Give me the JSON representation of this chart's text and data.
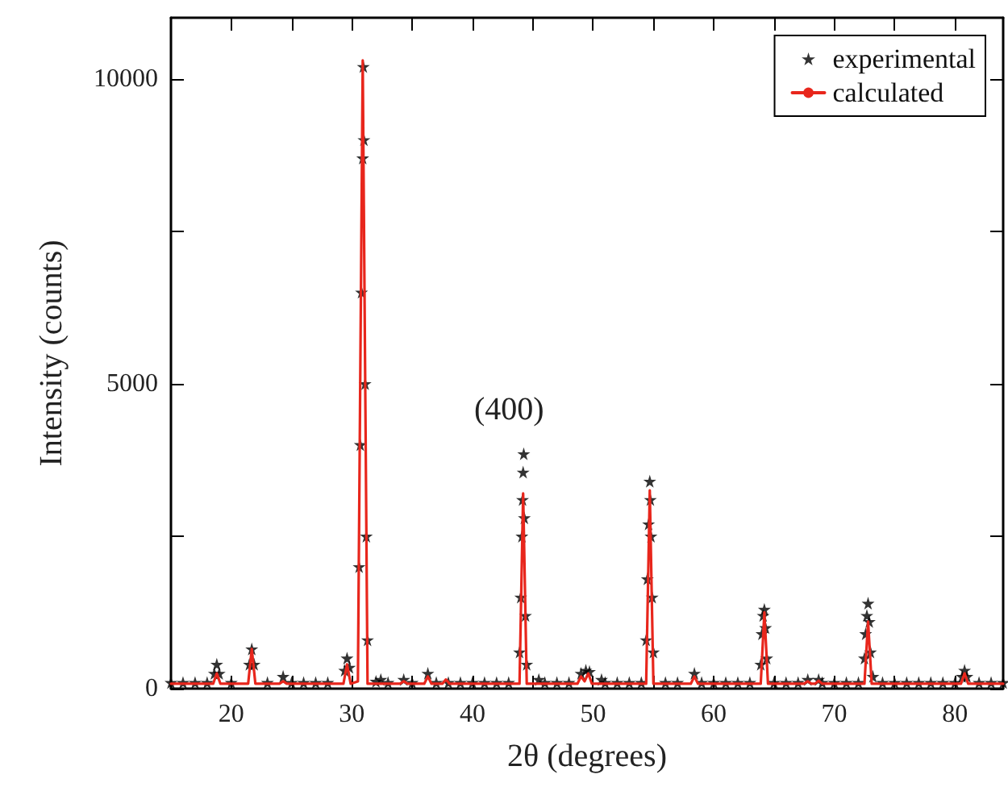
{
  "chart_data": {
    "type": "scatter",
    "xlabel": "2θ (degrees)",
    "ylabel": "Intensity (counts)",
    "xlim": [
      15,
      84
    ],
    "ylim": [
      0,
      11000
    ],
    "xticks": [
      20,
      {
        "value": 25,
        "label": null
      },
      30,
      {
        "value": 35,
        "label": null
      },
      40,
      {
        "value": 45,
        "label": null
      },
      50,
      {
        "value": 55,
        "label": null
      },
      60,
      {
        "value": 65,
        "label": null
      },
      70,
      {
        "value": 75,
        "label": null
      },
      80
    ],
    "yticks": [
      0,
      {
        "value": 2500,
        "label": null
      },
      5000,
      {
        "value": 7500,
        "label": null
      },
      10000
    ],
    "grid": false,
    "legend": "top right",
    "marker": "star",
    "annotations": [
      "(400)"
    ],
    "series": [
      {
        "name": "experimental",
        "color": "#000000",
        "x": [
          15,
          16,
          17,
          18,
          18.6,
          18.8,
          19,
          20,
          21.5,
          21.7,
          21.9,
          23,
          24.3,
          25,
          26,
          27,
          28,
          29.4,
          29.6,
          29.8,
          30.6,
          30.7,
          30.8,
          30.9,
          30.95,
          31,
          31.1,
          31.2,
          31.3,
          32,
          32.4,
          33,
          34.3,
          35,
          36.3,
          37,
          38,
          39,
          40,
          41,
          42,
          43,
          43.9,
          44,
          44.1,
          44.15,
          44.2,
          44.25,
          44.3,
          44.4,
          44.5,
          45.5,
          46,
          47,
          48,
          49,
          49.4,
          49.7,
          50.7,
          51,
          52,
          53,
          54,
          54.4,
          54.5,
          54.6,
          54.7,
          54.75,
          54.8,
          54.9,
          55,
          56,
          57,
          58.4,
          59,
          60,
          61,
          62,
          63,
          63.9,
          64,
          64.1,
          64.2,
          64.3,
          64.4,
          65,
          66,
          67,
          67.8,
          68.7,
          69,
          70,
          71,
          72,
          72.5,
          72.6,
          72.7,
          72.8,
          72.9,
          73,
          73.2,
          74,
          75,
          76,
          77,
          78,
          79,
          80,
          80.6,
          80.8,
          81,
          82,
          83,
          84
        ],
        "values": [
          100,
          100,
          100,
          100,
          250,
          400,
          250,
          100,
          400,
          650,
          400,
          100,
          200,
          100,
          100,
          100,
          100,
          300,
          500,
          350,
          2000,
          4000,
          6500,
          8700,
          10200,
          9000,
          5000,
          2500,
          800,
          120,
          150,
          100,
          150,
          100,
          250,
          100,
          100,
          100,
          100,
          100,
          100,
          100,
          600,
          1500,
          2500,
          3100,
          3550,
          3850,
          2800,
          1200,
          400,
          150,
          100,
          100,
          100,
          250,
          300,
          280,
          150,
          100,
          100,
          100,
          100,
          800,
          1800,
          2700,
          3400,
          3100,
          2500,
          1500,
          600,
          100,
          100,
          250,
          100,
          100,
          100,
          100,
          100,
          400,
          900,
          1200,
          1300,
          1000,
          500,
          100,
          100,
          100,
          150,
          150,
          100,
          100,
          100,
          100,
          500,
          900,
          1200,
          1400,
          1100,
          600,
          200,
          100,
          100,
          100,
          100,
          100,
          100,
          100,
          200,
          300,
          200,
          100,
          100,
          100
        ]
      },
      {
        "name": "calculated",
        "type": "line",
        "color": "#e8261c",
        "marker": "none",
        "line_style": "solid",
        "x": [
          15,
          18.5,
          18.8,
          19.1,
          21.4,
          21.7,
          22,
          24,
          24.3,
          24.6,
          29.3,
          29.6,
          29.9,
          30.5,
          30.9,
          31.3,
          34,
          34.3,
          34.6,
          36,
          36.3,
          36.6,
          37.5,
          37.8,
          38.1,
          43.9,
          44.2,
          44.5,
          48.7,
          49,
          49.3,
          49.6,
          49.9,
          54.4,
          54.7,
          55,
          58.1,
          58.4,
          58.7,
          63.9,
          64.2,
          64.5,
          67.5,
          67.8,
          68.1,
          68.4,
          68.7,
          69,
          72.5,
          72.8,
          73.1,
          80.5,
          80.8,
          81.1,
          84
        ],
        "values": [
          80,
          80,
          250,
          80,
          80,
          650,
          80,
          80,
          120,
          80,
          80,
          400,
          80,
          120,
          10300,
          80,
          80,
          120,
          80,
          80,
          200,
          80,
          80,
          150,
          80,
          80,
          3200,
          80,
          80,
          200,
          120,
          250,
          80,
          80,
          3250,
          80,
          80,
          200,
          80,
          80,
          1250,
          80,
          80,
          120,
          80,
          80,
          130,
          80,
          80,
          1100,
          80,
          80,
          250,
          80,
          80
        ]
      }
    ]
  }
}
